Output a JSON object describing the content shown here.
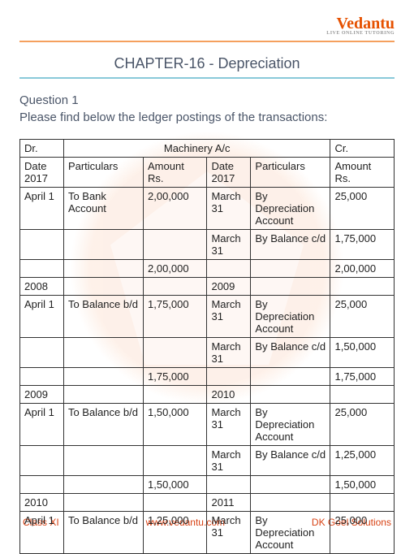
{
  "logo": {
    "main": "Vedantu",
    "sub": "LIVE ONLINE TUTORING"
  },
  "chapter_title": "CHAPTER-16 - Depreciation",
  "question_label": "Question 1",
  "question_text": "Please find below the ledger postings of the transactions:",
  "ledger": {
    "dr_label": "Dr.",
    "account_name": "Machinery A/c",
    "cr_label": "Cr.",
    "headers": {
      "date_dr": "Date",
      "year_dr": "2017",
      "part_dr": "Particulars",
      "amt_dr": "Amount Rs.",
      "date_cr": "Date",
      "year_cr": "2017",
      "part_cr": "Particulars",
      "amt_cr": "Amount Rs."
    },
    "blocks": [
      {
        "dr_year": "",
        "cr_year": "",
        "rows": [
          {
            "dd": "April 1",
            "dp": "To Bank Account",
            "da": "2,00,000",
            "cd": "March 31",
            "cp": "By Depreciation Account",
            "ca": "25,000"
          },
          {
            "dd": "",
            "dp": "",
            "da": "",
            "cd": "March 31",
            "cp": "By Balance c/d",
            "ca": "1,75,000"
          },
          {
            "dd": "",
            "dp": "",
            "da": "2,00,000",
            "cd": "",
            "cp": "",
            "ca": "2,00,000"
          }
        ]
      },
      {
        "dr_year": "2008",
        "cr_year": "2009",
        "rows": [
          {
            "dd": "April 1",
            "dp": "To Balance b/d",
            "da": "1,75,000",
            "cd": "March 31",
            "cp": "By Depreciation Account",
            "ca": "25,000"
          },
          {
            "dd": "",
            "dp": "",
            "da": "",
            "cd": "March 31",
            "cp": "By Balance c/d",
            "ca": "1,50,000"
          },
          {
            "dd": "",
            "dp": "",
            "da": "1,75,000",
            "cd": "",
            "cp": "",
            "ca": "1,75,000"
          }
        ]
      },
      {
        "dr_year": "2009",
        "cr_year": "2010",
        "rows": [
          {
            "dd": "April 1",
            "dp": "To Balance b/d",
            "da": "1,50,000",
            "cd": "March 31",
            "cp": "By Depreciation Account",
            "ca": "25,000"
          },
          {
            "dd": "",
            "dp": "",
            "da": "",
            "cd": "March 31",
            "cp": "By Balance c/d",
            "ca": "1,25,000"
          },
          {
            "dd": "",
            "dp": "",
            "da": "1,50,000",
            "cd": "",
            "cp": "",
            "ca": "1,50,000"
          }
        ]
      },
      {
        "dr_year": "2010",
        "cr_year": "2011",
        "rows": [
          {
            "dd": "April 1",
            "dp": "To Balance b/d",
            "da": "1,25,000",
            "cd": "March 31",
            "cp": "By Depreciation Account",
            "ca": "25,000"
          }
        ]
      }
    ]
  },
  "footer": {
    "left": "Class XI",
    "center": "www.vedantu.com",
    "right": "DK Goel Solutions"
  }
}
